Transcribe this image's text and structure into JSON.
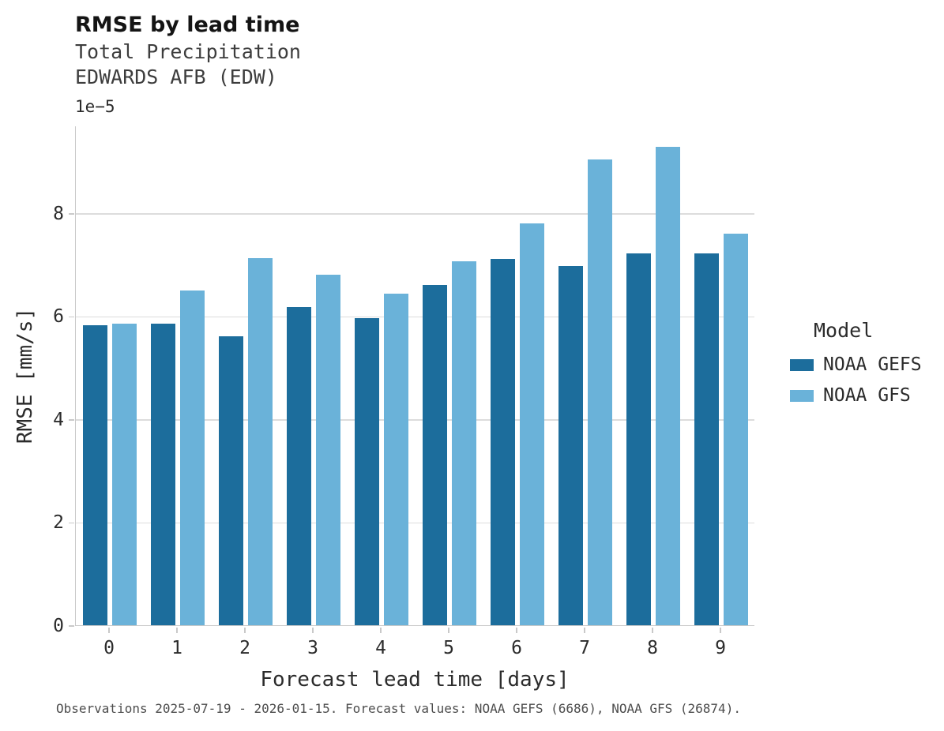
{
  "chart_data": {
    "type": "bar",
    "title": "RMSE by lead time",
    "subtitle_line1": "Total Precipitation",
    "subtitle_line2": "EDWARDS AFB (EDW)",
    "xlabel": "Forecast lead time [days]",
    "ylabel": "RMSE [mm/s]",
    "y_offset_label": "1e−5",
    "categories": [
      "0",
      "1",
      "2",
      "3",
      "4",
      "5",
      "6",
      "7",
      "8",
      "9"
    ],
    "series": [
      {
        "name": "NOAA GEFS",
        "color": "#1c6d9c",
        "values": [
          5.83,
          5.86,
          5.61,
          6.18,
          5.96,
          6.6,
          7.11,
          6.97,
          7.22,
          7.22
        ]
      },
      {
        "name": "NOAA GFS",
        "color": "#6ab2d9",
        "values": [
          5.85,
          6.5,
          7.13,
          6.81,
          6.44,
          7.06,
          7.8,
          9.04,
          9.29,
          7.6
        ]
      }
    ],
    "yticks": [
      0,
      2,
      4,
      6,
      8
    ],
    "ylim": [
      0,
      9.7
    ],
    "grid": "horizontal",
    "legend": {
      "title": "Model",
      "position": "right"
    }
  },
  "footer": {
    "caption": "Observations 2025-07-19 - 2026-01-15. Forecast values: NOAA GEFS (6686), NOAA GFS (26874)."
  }
}
